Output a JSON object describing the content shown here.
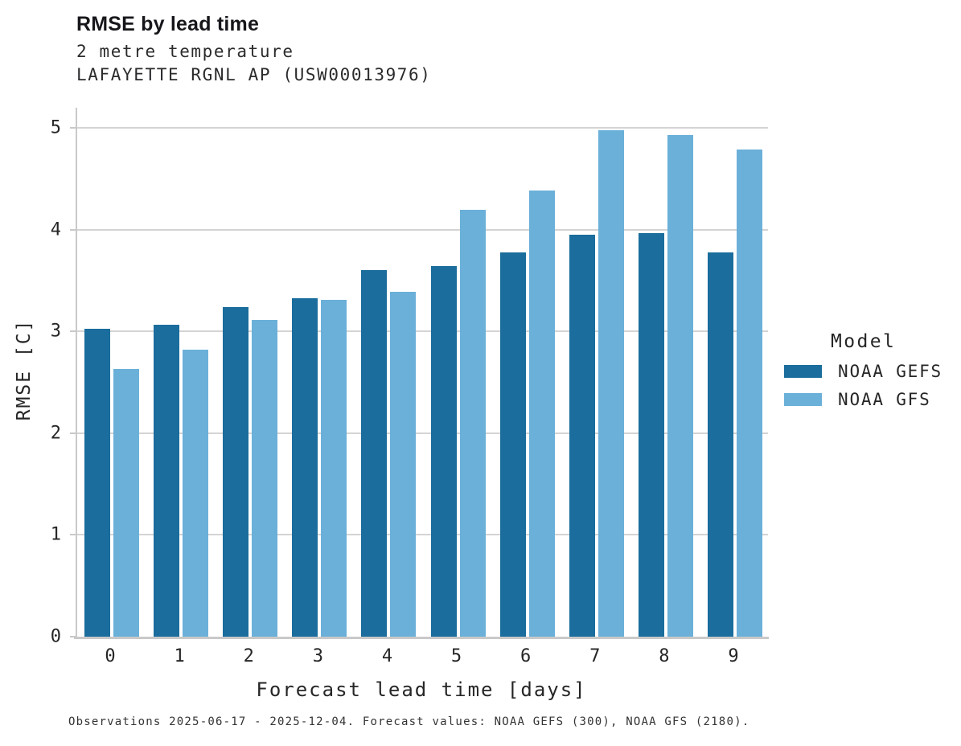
{
  "header": {
    "title": "RMSE by lead time",
    "subtitle_variable": "2 metre temperature",
    "subtitle_station": "LAFAYETTE RGNL AP (USW00013976)"
  },
  "footnote": "Observations 2025-06-17 - 2025-12-04. Forecast values: NOAA GEFS (300), NOAA GFS (2180).",
  "legend": {
    "title": "Model"
  },
  "colors": {
    "gefs_dark_blue": "#1a6d9c",
    "gfs_light_blue": "#6ab0d9",
    "gridline": "#d4d4d4",
    "axis_spine": "#c9c9c9",
    "background": "#ffffff",
    "text": "#262626"
  },
  "chart_data": {
    "type": "bar",
    "title": "RMSE by lead time",
    "subtitle": [
      "2 metre temperature",
      "LAFAYETTE RGNL AP (USW00013976)"
    ],
    "xlabel": "Forecast lead time [days]",
    "ylabel": "RMSE [C]",
    "categories": [
      "0",
      "1",
      "2",
      "3",
      "4",
      "5",
      "6",
      "7",
      "8",
      "9"
    ],
    "series": [
      {
        "name": "NOAA GEFS",
        "color": "#1a6d9c",
        "values": [
          3.03,
          3.07,
          3.24,
          3.33,
          3.6,
          3.64,
          3.78,
          3.95,
          3.97,
          3.78
        ]
      },
      {
        "name": "NOAA GFS",
        "color": "#6ab0d9",
        "values": [
          2.63,
          2.82,
          3.11,
          3.31,
          3.39,
          4.2,
          4.39,
          4.98,
          4.93,
          4.79
        ]
      }
    ],
    "ylim": [
      0,
      5.2
    ],
    "yticks": [
      0,
      1,
      2,
      3,
      4,
      5
    ],
    "grid": true,
    "legend_position": "center-right",
    "annotation": "Observations 2025-06-17 - 2025-12-04. Forecast values: NOAA GEFS (300), NOAA GFS (2180)."
  }
}
